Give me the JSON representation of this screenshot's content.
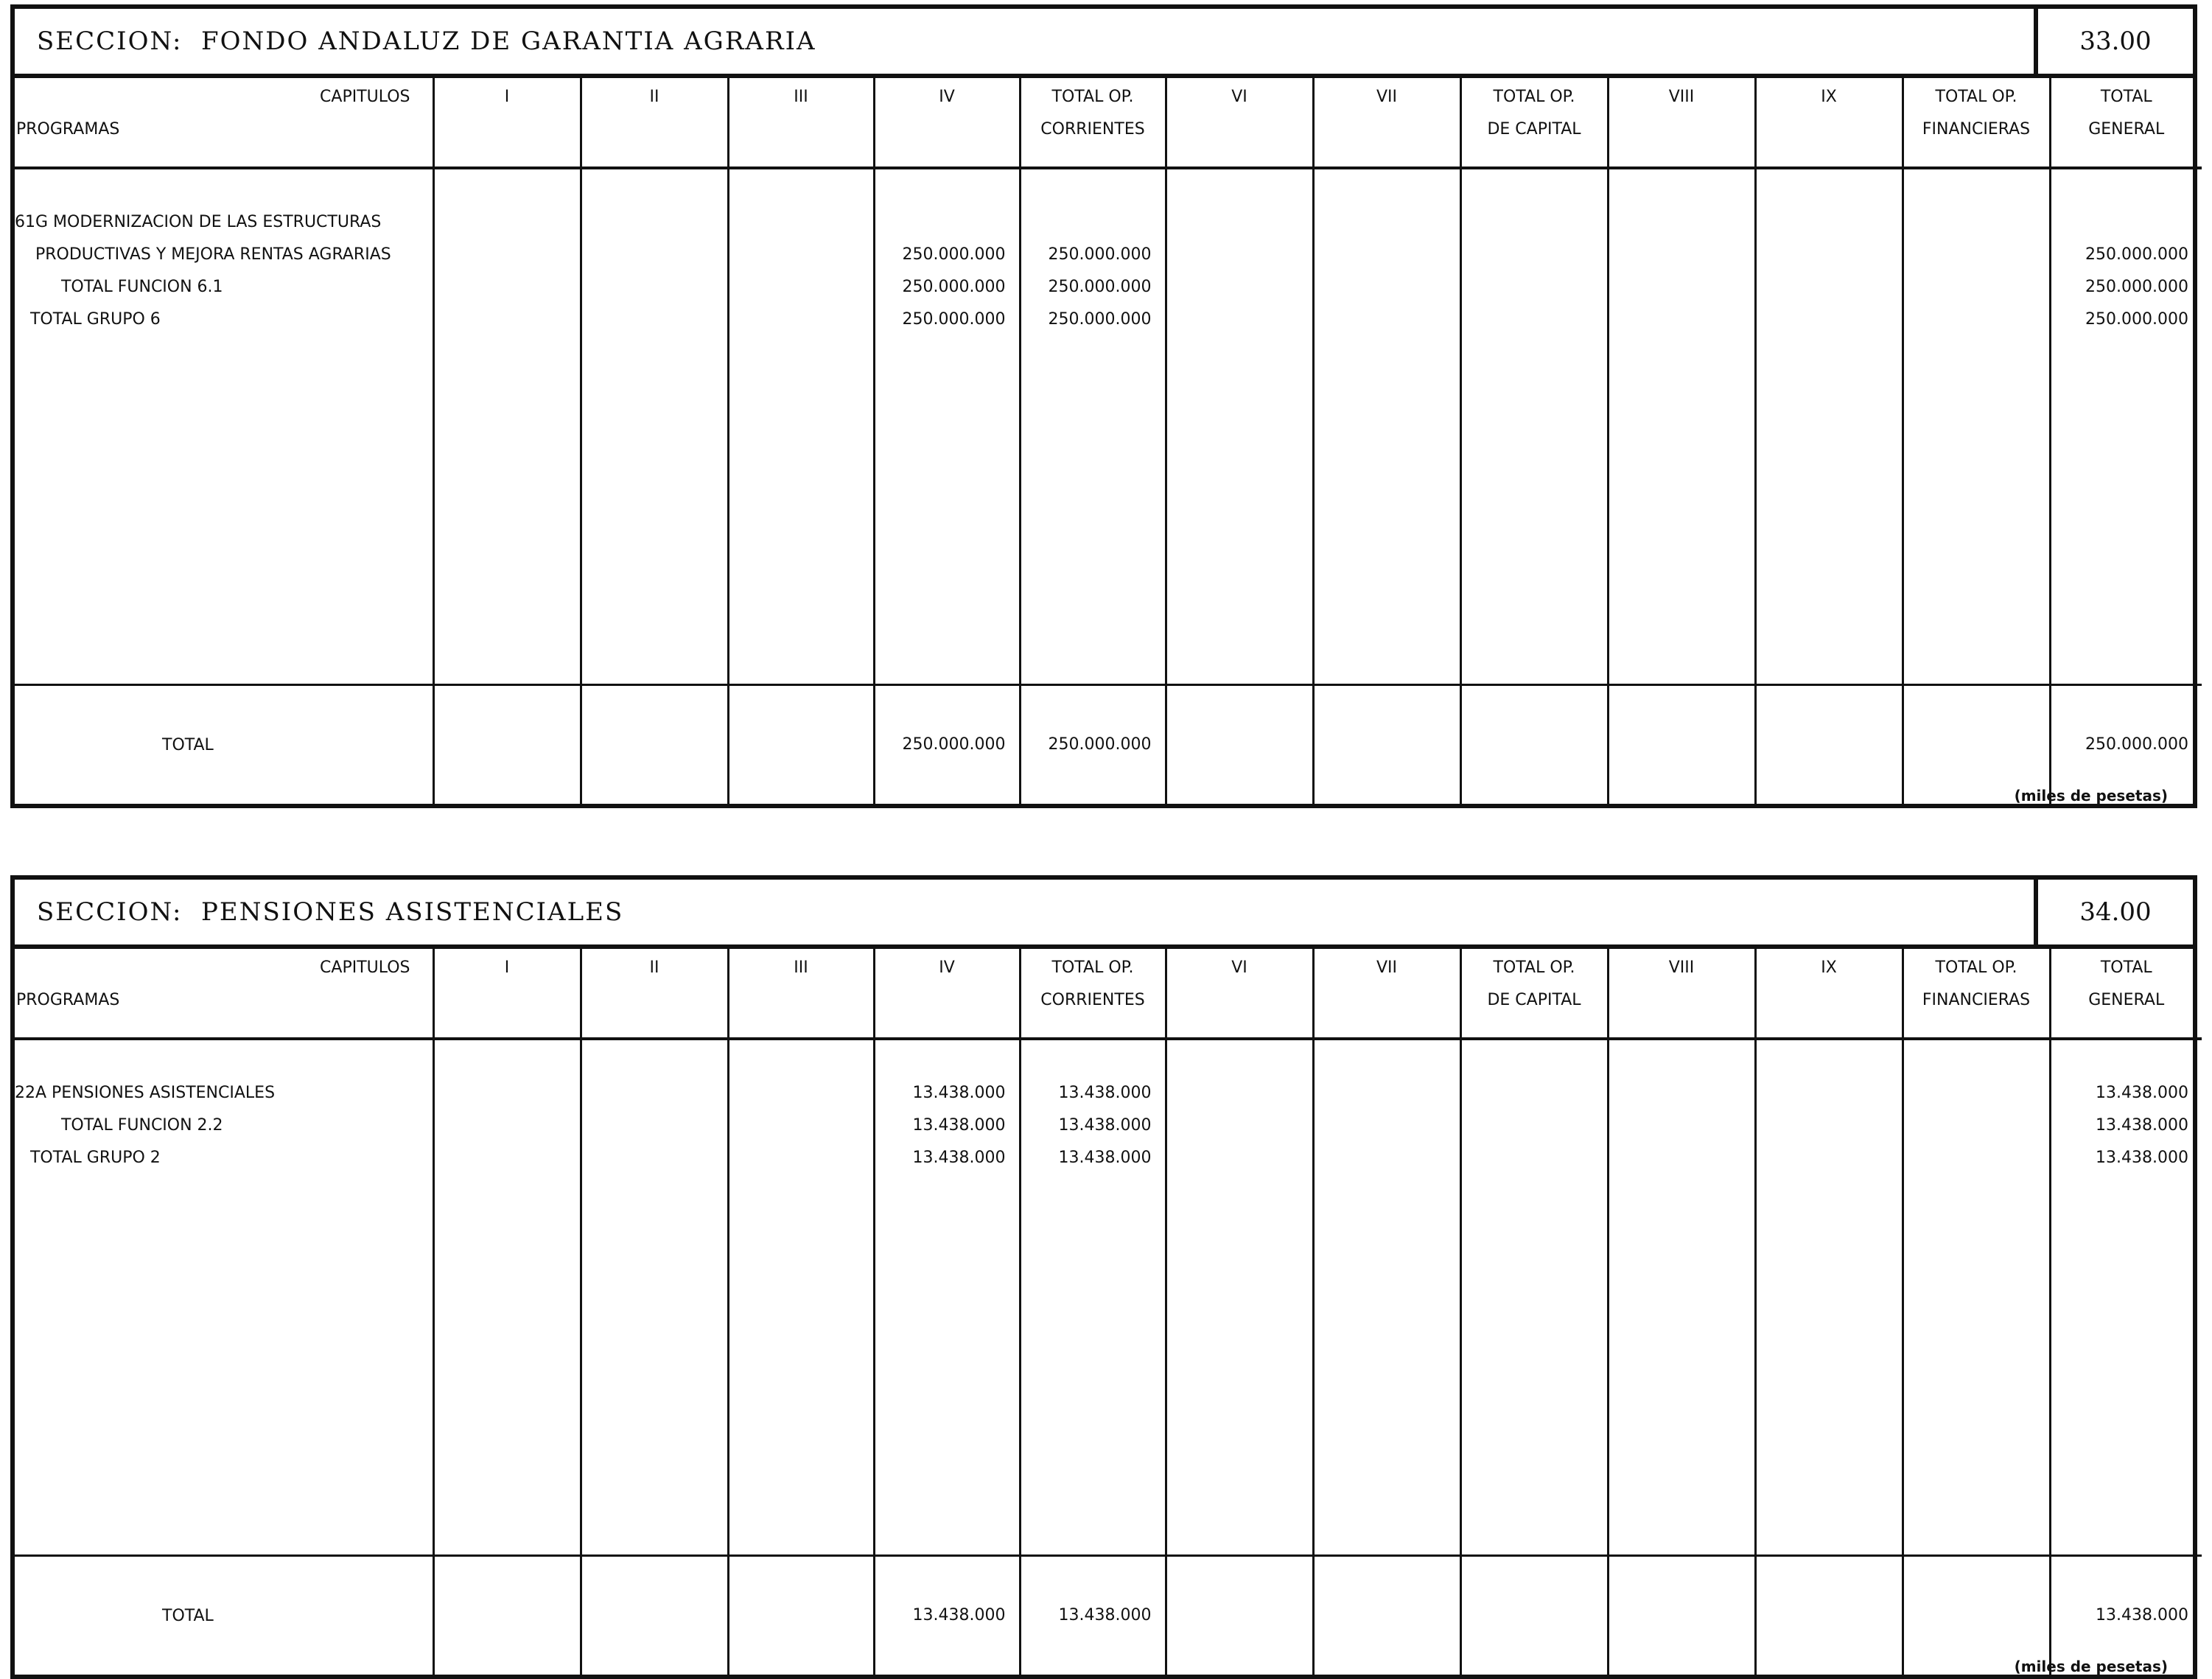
{
  "columns": {
    "capitulos": "CAPITULOS",
    "programas": "PROGRAMAS",
    "c1": "I",
    "c2": "II",
    "c3": "III",
    "c4": "IV",
    "top_corr_1": "TOTAL OP.",
    "top_corr_2": "CORRIENTES",
    "c6": "VI",
    "c7": "VII",
    "top_cap_1": "TOTAL OP.",
    "top_cap_2": "DE CAPITAL",
    "c8": "VIII",
    "c9": "IX",
    "top_fin_1": "TOTAL OP.",
    "top_fin_2": "FINANCIERAS",
    "tg_1": "TOTAL",
    "tg_2": "GENERAL"
  },
  "unit_note": "(miles de pesetas)",
  "sections": [
    {
      "title": "SECCION:  FONDO ANDALUZ DE GARANTIA AGRARIA",
      "code": "33.00",
      "rows": [
        {
          "label": "61G MODERNIZACION DE LAS ESTRUCTURAS",
          "iv": "",
          "corr": "",
          "total": ""
        },
        {
          "label": "    PRODUCTIVAS Y MEJORA RENTAS AGRARIAS",
          "iv": "250.000.000",
          "corr": "250.000.000",
          "total": "250.000.000"
        },
        {
          "label": "         TOTAL FUNCION 6.1",
          "iv": "250.000.000",
          "corr": "250.000.000",
          "total": "250.000.000"
        },
        {
          "label": "   TOTAL GRUPO 6",
          "iv": "250.000.000",
          "corr": "250.000.000",
          "total": "250.000.000"
        }
      ],
      "total": {
        "label": "TOTAL",
        "iv": "250.000.000",
        "corr": "250.000.000",
        "total": "250.000.000"
      }
    },
    {
      "title": "SECCION:  PENSIONES ASISTENCIALES",
      "code": "34.00",
      "rows": [
        {
          "label": "22A PENSIONES ASISTENCIALES",
          "iv": "13.438.000",
          "corr": "13.438.000",
          "total": "13.438.000"
        },
        {
          "label": "         TOTAL FUNCION 2.2",
          "iv": "13.438.000",
          "corr": "13.438.000",
          "total": "13.438.000"
        },
        {
          "label": "   TOTAL GRUPO 2",
          "iv": "13.438.000",
          "corr": "13.438.000",
          "total": "13.438.000"
        }
      ],
      "total": {
        "label": "TOTAL",
        "iv": "13.438.000",
        "corr": "13.438.000",
        "total": "13.438.000"
      }
    }
  ]
}
